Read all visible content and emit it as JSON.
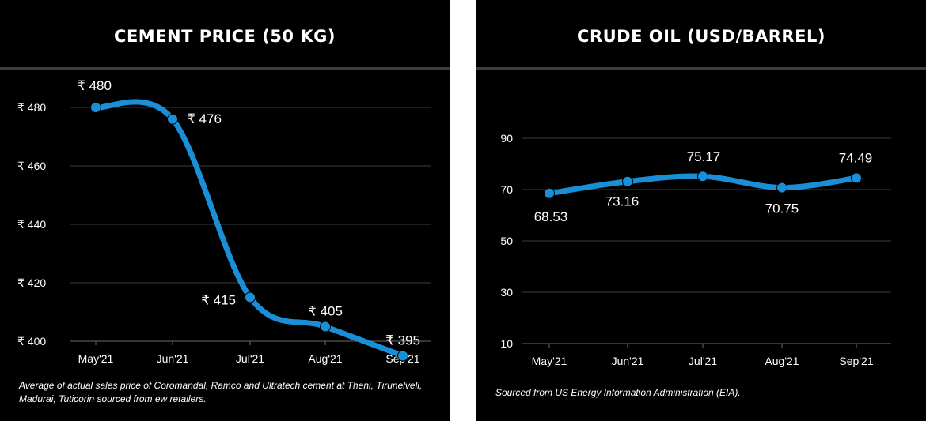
{
  "charts": [
    {
      "title": "CEMENT PRICE (50 KG)",
      "note": "Average of actual sales price of Coromandal, Ramco and Ultratech cement at Theni, Tirunelveli, Madurai, Tuticorin sourced from ew retailers."
    },
    {
      "title": "CRUDE OIL (USD/BARREL)",
      "note": "Sourced from US Energy Information Administration (EIA)."
    }
  ],
  "chart_data": [
    {
      "type": "line",
      "categories": [
        "May'21",
        "Jun'21",
        "Jul'21",
        "Aug'21",
        "Sep'21"
      ],
      "values": [
        480,
        476,
        415,
        405,
        395
      ],
      "data_labels": [
        "₹ 480",
        "₹ 476",
        "₹ 415",
        "₹ 405",
        "₹ 395"
      ],
      "yticks": [
        "₹ 400",
        "₹ 420",
        "₹ 440",
        "₹ 460",
        "₹ 480"
      ],
      "ytick_values": [
        400,
        420,
        440,
        460,
        480
      ],
      "ylim": [
        400,
        485
      ],
      "title": "CEMENT PRICE (50 KG)",
      "line_color": "#1a8fd8",
      "grid": true
    },
    {
      "type": "line",
      "categories": [
        "May'21",
        "Jun'21",
        "Jul'21",
        "Aug'21",
        "Sep'21"
      ],
      "values": [
        68.53,
        73.16,
        75.17,
        70.75,
        74.49
      ],
      "data_labels": [
        "68.53",
        "73.16",
        "75.17",
        "70.75",
        "74.49"
      ],
      "yticks": [
        "10",
        "30",
        "50",
        "70",
        "90"
      ],
      "ytick_values": [
        10,
        30,
        50,
        70,
        90
      ],
      "ylim": [
        10,
        90
      ],
      "title": "CRUDE OIL (USD/BARREL)",
      "line_color": "#1a8fd8",
      "grid": true
    }
  ]
}
